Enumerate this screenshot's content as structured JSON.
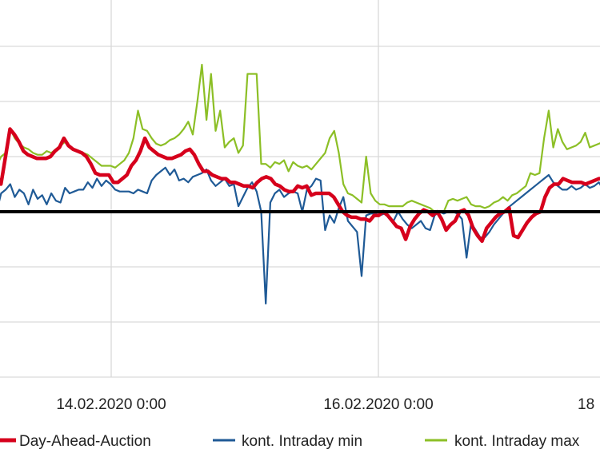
{
  "chart_data": {
    "type": "line",
    "x_tick_labels": [
      "14.02.2020 0:00",
      "16.02.2020 0:00",
      "18"
    ],
    "grid": true,
    "legend_position": "bottom",
    "series": [
      {
        "name": "Day-Ahead-Auction",
        "color": "#d6001c",
        "values": [
          2,
          2,
          1.5,
          3,
          4.5,
          4.2,
          3.8,
          3.3,
          3.1,
          3.0,
          2.9,
          2.9,
          2.9,
          3.0,
          3.3,
          3.5,
          4.0,
          3.6,
          3.4,
          3.3,
          3.2,
          3.0,
          2.6,
          2.1,
          2.0,
          2.0,
          2.0,
          1.6,
          1.6,
          1.8,
          2.0,
          2.5,
          2.8,
          3.3,
          4.0,
          3.5,
          3.3,
          3.1,
          3.0,
          2.9,
          2.9,
          3.0,
          3.1,
          3.3,
          3.4,
          3.1,
          2.6,
          2.2,
          2.2,
          2.0,
          1.9,
          1.8,
          1.8,
          1.6,
          1.6,
          1.5,
          1.4,
          1.4,
          1.3,
          1.6,
          1.8,
          1.9,
          1.8,
          1.5,
          1.4,
          1.2,
          1.1,
          1.1,
          1.4,
          1.3,
          1.4,
          0.9,
          1.0,
          1.0,
          1.0,
          1.0,
          0.8,
          0.4,
          0.0,
          -0.2,
          -0.3,
          -0.3,
          -0.4,
          -0.4,
          -0.5,
          -0.2,
          -0.2,
          0.0,
          -0.2,
          -0.5,
          -0.8,
          -0.9,
          -1.5,
          -0.8,
          -0.4,
          -0.1,
          0.1,
          0.0,
          -0.2,
          0.0,
          -0.4,
          -1.0,
          -0.7,
          -0.5,
          0.0,
          0.1,
          -0.2,
          -0.9,
          -1.3,
          -1.6,
          -0.9,
          -0.6,
          -0.3,
          -0.1,
          0.0,
          0.2,
          -1.3,
          -1.4,
          -1.0,
          -0.6,
          -0.3,
          -0.1,
          0.0,
          0.8,
          1.3,
          1.5,
          1.5,
          1.8,
          1.7,
          1.6,
          1.6,
          1.6,
          1.5,
          1.6,
          1.7,
          1.8,
          1.8,
          2.0
        ]
      },
      {
        "name": "kont. Intraday min",
        "color": "#1f5a96",
        "values": [
          0.5,
          0.0,
          1.0,
          1.2,
          1.5,
          0.8,
          1.2,
          1.0,
          0.4,
          1.2,
          0.7,
          0.9,
          0.4,
          1.0,
          0.6,
          0.5,
          1.3,
          1.0,
          1.1,
          1.2,
          1.2,
          1.6,
          1.3,
          1.8,
          1.4,
          1.7,
          1.5,
          1.2,
          1.1,
          1.1,
          1.1,
          1.0,
          1.2,
          1.1,
          1.0,
          1.7,
          2.0,
          2.2,
          2.4,
          2.0,
          2.3,
          1.7,
          1.8,
          1.6,
          1.9,
          2.0,
          2.1,
          2.3,
          1.7,
          1.4,
          1.6,
          1.8,
          1.4,
          1.5,
          0.3,
          0.8,
          1.3,
          1.6,
          1.1,
          0.0,
          -5.0,
          0.5,
          1.0,
          1.2,
          0.8,
          1.0,
          1.1,
          1.0,
          0.0,
          1.2,
          1.4,
          1.8,
          1.7,
          -1.0,
          -0.2,
          -0.6,
          0.2,
          0.8,
          -0.5,
          -0.8,
          -1.1,
          -3.5,
          -0.2,
          -0.1,
          -0.1,
          -0.2,
          -0.1,
          -0.3,
          -0.5,
          0.0,
          -0.4,
          -0.7,
          -0.9,
          -0.7,
          -0.5,
          -0.9,
          -1.0,
          -0.2,
          0.0,
          -0.1,
          0.0,
          0.0,
          -0.1,
          -0.4,
          -2.5,
          -0.6,
          -1.0,
          -1.4,
          -1.4,
          -1.1,
          -0.7,
          -0.4,
          -0.1,
          0.2,
          0.4,
          0.6,
          0.8,
          1.0,
          1.2,
          1.4,
          1.6,
          1.8,
          2.0,
          1.6,
          1.4,
          1.2,
          1.2,
          1.4,
          1.2,
          1.3,
          1.5,
          1.3,
          1.4,
          1.6,
          1.2,
          1.1
        ]
      },
      {
        "name": "kont. Intraday max",
        "color": "#8cbf26",
        "values": [
          2.0,
          2.5,
          3.0,
          3.2,
          4.5,
          4.0,
          3.7,
          3.5,
          3.4,
          3.2,
          3.1,
          3.1,
          3.3,
          3.2,
          3.4,
          3.6,
          3.8,
          3.5,
          3.4,
          3.3,
          3.2,
          3.1,
          2.9,
          2.7,
          2.5,
          2.5,
          2.5,
          2.4,
          2.6,
          2.8,
          3.2,
          4.0,
          5.5,
          4.5,
          4.4,
          4.0,
          3.7,
          3.6,
          3.7,
          3.9,
          4.0,
          4.2,
          4.5,
          4.9,
          4.2,
          6.0,
          8.0,
          5.0,
          7.5,
          4.4,
          5.5,
          3.5,
          3.8,
          4.0,
          3.2,
          3.6,
          7.5,
          7.5,
          7.5,
          2.6,
          2.6,
          2.4,
          2.7,
          2.6,
          2.8,
          2.2,
          2.7,
          2.5,
          2.4,
          2.5,
          2.3,
          2.6,
          2.9,
          3.2,
          4.0,
          4.4,
          3.2,
          1.5,
          1.0,
          0.9,
          0.7,
          0.5,
          3.0,
          1.0,
          0.6,
          0.4,
          0.4,
          0.3,
          0.3,
          0.3,
          0.3,
          0.5,
          0.6,
          0.5,
          0.4,
          0.3,
          0.2,
          0.0,
          0.0,
          0.0,
          0.6,
          0.7,
          0.6,
          0.7,
          0.8,
          0.4,
          0.3,
          0.3,
          0.2,
          0.3,
          0.5,
          0.6,
          0.8,
          0.6,
          0.9,
          1.0,
          1.2,
          1.4,
          2.1,
          2.0,
          2.1,
          4.0,
          5.5,
          3.5,
          4.5,
          3.8,
          3.4,
          3.5,
          3.6,
          3.8,
          4.3,
          3.5,
          3.6,
          3.7,
          3.8,
          4.0
        ]
      }
    ]
  }
}
